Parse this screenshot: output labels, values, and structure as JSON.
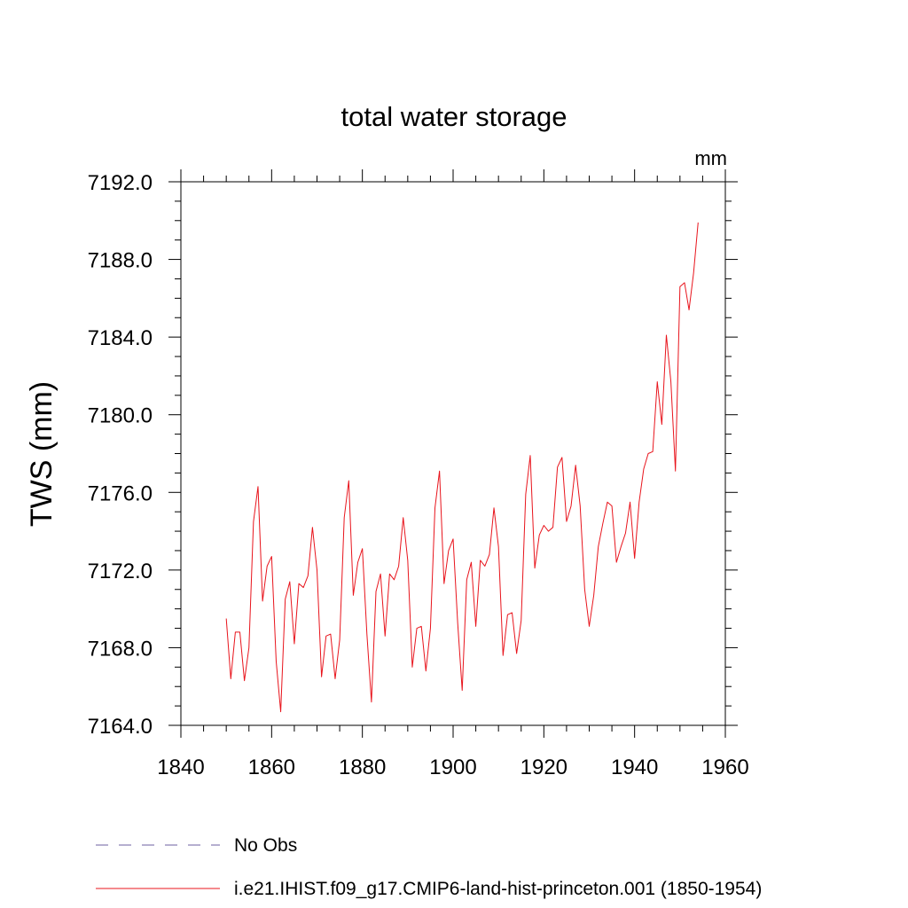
{
  "chart_data": {
    "type": "line",
    "title": "total water storage",
    "units_label": "mm",
    "xlabel": "",
    "ylabel": "TWS  (mm)",
    "xlim": [
      1840,
      1960
    ],
    "ylim": [
      7164.0,
      7192.0
    ],
    "x_ticks": [
      1840,
      1860,
      1880,
      1900,
      1920,
      1940,
      1960
    ],
    "x_tick_labels": [
      "1840",
      "1860",
      "1880",
      "1900",
      "1920",
      "1940",
      "1960"
    ],
    "y_ticks": [
      7164.0,
      7168.0,
      7172.0,
      7176.0,
      7180.0,
      7184.0,
      7188.0,
      7192.0
    ],
    "y_tick_labels": [
      "7164.0",
      "7168.0",
      "7172.0",
      "7176.0",
      "7180.0",
      "7184.0",
      "7188.0",
      "7192.0"
    ],
    "grid": false,
    "legend_placement": "bottom",
    "series": [
      {
        "name": "i.e21.IHIST.f09_g17.CMIP6-land-hist-princeton.001 (1850-1954)",
        "color": "#e8141c",
        "style": "solid",
        "x": [
          1850,
          1851,
          1852,
          1853,
          1854,
          1855,
          1856,
          1857,
          1858,
          1859,
          1860,
          1861,
          1862,
          1863,
          1864,
          1865,
          1866,
          1867,
          1868,
          1869,
          1870,
          1871,
          1872,
          1873,
          1874,
          1875,
          1876,
          1877,
          1878,
          1879,
          1880,
          1881,
          1882,
          1883,
          1884,
          1885,
          1886,
          1887,
          1888,
          1889,
          1890,
          1891,
          1892,
          1893,
          1894,
          1895,
          1896,
          1897,
          1898,
          1899,
          1900,
          1901,
          1902,
          1903,
          1904,
          1905,
          1906,
          1907,
          1908,
          1909,
          1910,
          1911,
          1912,
          1913,
          1914,
          1915,
          1916,
          1917,
          1918,
          1919,
          1920,
          1921,
          1922,
          1923,
          1924,
          1925,
          1926,
          1927,
          1928,
          1929,
          1930,
          1931,
          1932,
          1933,
          1934,
          1935,
          1936,
          1937,
          1938,
          1939,
          1940,
          1941,
          1942,
          1943,
          1944,
          1945,
          1946,
          1947,
          1948,
          1949,
          1950,
          1951,
          1952,
          1953,
          1954
        ],
        "values": [
          7169.5,
          7166.4,
          7168.8,
          7168.8,
          7166.3,
          7168.0,
          7174.5,
          7176.3,
          7170.4,
          7172.2,
          7172.7,
          7167.3,
          7164.7,
          7170.5,
          7171.4,
          7168.2,
          7171.3,
          7171.1,
          7171.7,
          7174.2,
          7172.0,
          7166.5,
          7168.6,
          7168.7,
          7166.4,
          7168.4,
          7174.7,
          7176.6,
          7170.7,
          7172.4,
          7173.1,
          7168.7,
          7165.2,
          7170.9,
          7171.8,
          7168.6,
          7171.8,
          7171.5,
          7172.2,
          7174.7,
          7172.5,
          7167.0,
          7169.0,
          7169.1,
          7166.8,
          7169.0,
          7175.2,
          7177.1,
          7171.3,
          7173.0,
          7173.6,
          7169.3,
          7165.8,
          7171.5,
          7172.4,
          7169.1,
          7172.5,
          7172.2,
          7172.8,
          7175.2,
          7173.2,
          7167.6,
          7169.7,
          7169.8,
          7167.7,
          7169.4,
          7175.9,
          7177.9,
          7172.1,
          7173.8,
          7174.3,
          7174.0,
          7174.2,
          7177.3,
          7177.8,
          7174.5,
          7175.3,
          7177.4,
          7175.3,
          7171.0,
          7169.1,
          7170.7,
          7173.2,
          7174.4,
          7175.5,
          7175.3,
          7172.4,
          7173.2,
          7173.9,
          7175.5,
          7172.6,
          7175.5,
          7177.2,
          7178.0,
          7178.1,
          7181.7,
          7179.5,
          7184.1,
          7181.7,
          7177.1,
          7186.6,
          7186.8,
          7185.4,
          7187.3,
          7189.9
        ]
      }
    ],
    "legend": [
      {
        "label": "No Obs",
        "color": "#6e5fa0",
        "style": "dashed"
      },
      {
        "label": "i.e21.IHIST.f09_g17.CMIP6-land-hist-princeton.001 (1850-1954)",
        "color": "#e8141c",
        "style": "solid"
      }
    ]
  }
}
